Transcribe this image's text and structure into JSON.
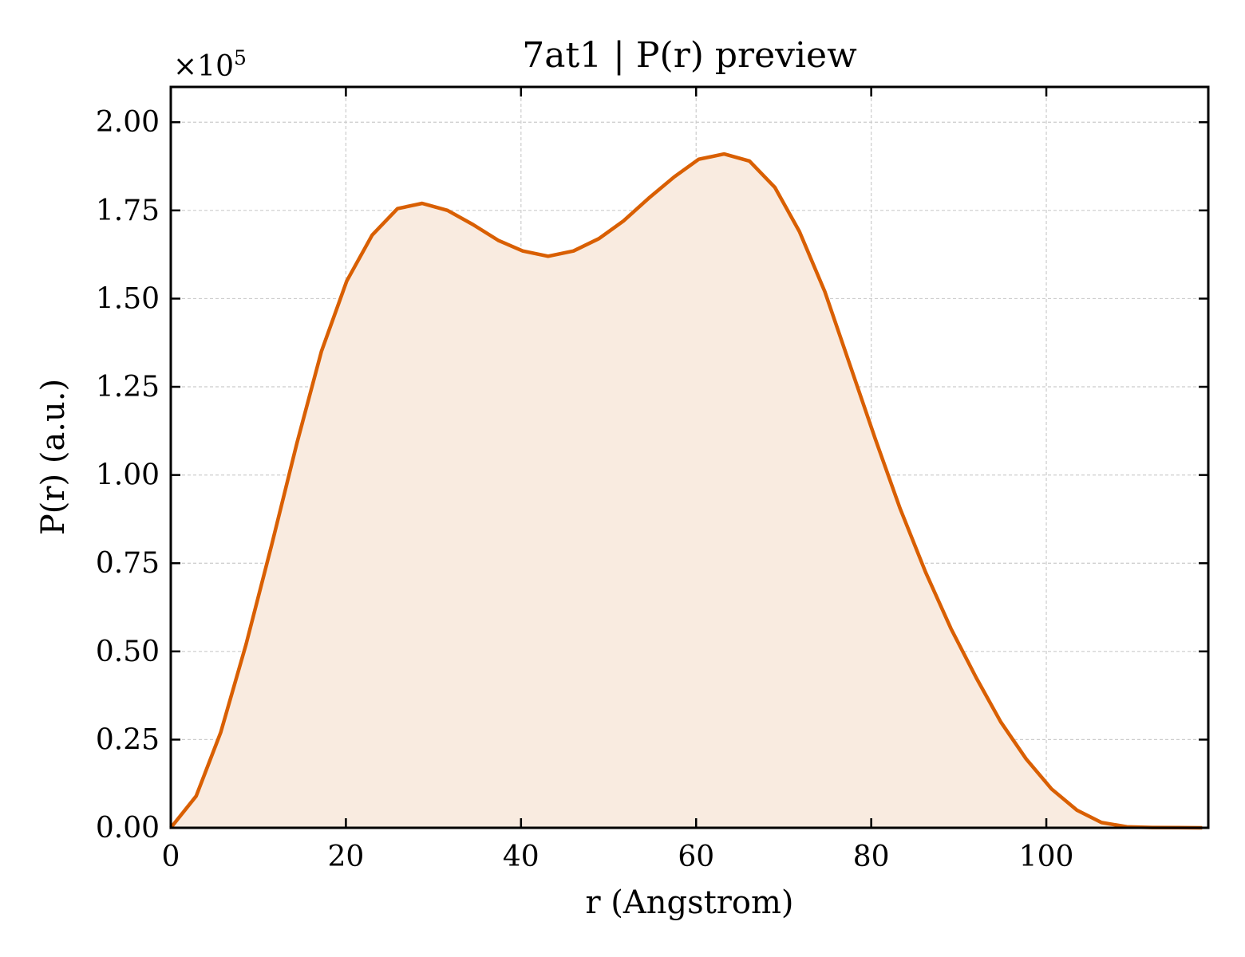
{
  "chart_data": {
    "type": "area",
    "title": "7at1 | P(r) preview",
    "xlabel": "r (Angstrom)",
    "ylabel": "P(r) (a.u.)",
    "y_multiplier_base": "×10",
    "y_multiplier_exp": "5",
    "xlim": [
      0,
      118.5
    ],
    "ylim": [
      0,
      2.1
    ],
    "y_scale": 100000,
    "grid": true,
    "xticks": [
      0,
      20,
      40,
      60,
      80,
      100
    ],
    "xtick_labels": [
      "0",
      "20",
      "40",
      "60",
      "80",
      "100"
    ],
    "yticks": [
      0,
      0.25,
      0.5,
      0.75,
      1.0,
      1.25,
      1.5,
      1.75,
      2.0
    ],
    "ytick_labels": [
      "0.00",
      "0.25",
      "0.50",
      "0.75",
      "1.00",
      "1.25",
      "1.50",
      "1.75",
      "2.00"
    ],
    "colors": {
      "line": "#d95f02",
      "fill": "#f9ebe0"
    },
    "x": [
      0,
      2.9,
      5.7,
      8.6,
      11.5,
      14.4,
      17.2,
      20.1,
      23.0,
      25.9,
      28.7,
      31.6,
      34.5,
      37.4,
      40.2,
      43.1,
      46.0,
      48.9,
      51.7,
      54.6,
      57.5,
      60.3,
      63.2,
      66.1,
      69.0,
      71.8,
      74.7,
      77.6,
      80.5,
      83.3,
      86.2,
      89.1,
      92.0,
      94.8,
      97.7,
      100.6,
      103.5,
      106.3,
      109.2,
      112.1,
      115.0,
      117.8
    ],
    "y": [
      0.0,
      0.09,
      0.27,
      0.52,
      0.8,
      1.09,
      1.35,
      1.55,
      1.68,
      1.755,
      1.77,
      1.75,
      1.71,
      1.665,
      1.635,
      1.62,
      1.635,
      1.67,
      1.72,
      1.785,
      1.845,
      1.895,
      1.91,
      1.89,
      1.815,
      1.69,
      1.52,
      1.31,
      1.1,
      0.905,
      0.725,
      0.565,
      0.425,
      0.3,
      0.195,
      0.11,
      0.05,
      0.015,
      0.003,
      0.001,
      0.0005,
      0.0
    ]
  }
}
